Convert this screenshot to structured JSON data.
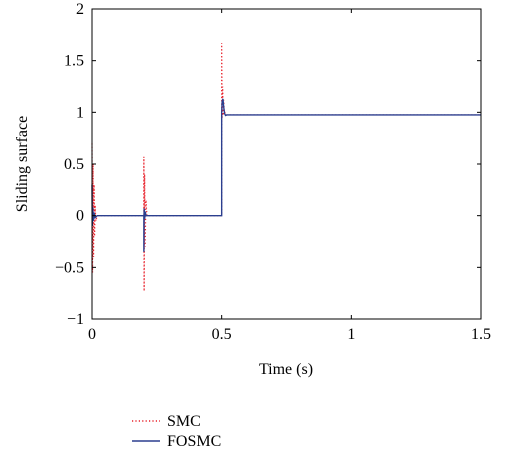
{
  "chart_data": {
    "type": "line",
    "title": "",
    "xlabel": "Time (s)",
    "ylabel": "Sliding surface",
    "xlim": [
      0,
      1.5
    ],
    "ylim": [
      -1,
      2
    ],
    "x_ticks": [
      0,
      0.5,
      1,
      1.5
    ],
    "x_tick_labels": [
      "0",
      "0.5",
      "1",
      "1.5"
    ],
    "y_ticks": [
      -1,
      -0.5,
      0,
      0.5,
      1,
      1.5,
      2
    ],
    "y_tick_labels": [
      "−1",
      "−0.5",
      "0",
      "0.5",
      "1",
      "1.5",
      "2"
    ],
    "grid": false,
    "legend_position": "bottom-left, below axes",
    "series": [
      {
        "name": "SMC",
        "color": "#e8202a",
        "style": "dotted",
        "x": [
          0,
          0.002,
          0.004,
          0.006,
          0.008,
          0.01,
          0.012,
          0.015,
          0.02,
          0.03,
          0.19,
          0.199,
          0.2,
          0.2,
          0.201,
          0.203,
          0.205,
          0.208,
          0.212,
          0.22,
          0.49,
          0.499,
          0.5,
          0.5,
          0.502,
          0.504,
          0.506,
          0.508,
          0.51,
          0.512,
          0.515,
          0.52,
          0.53,
          1.5
        ],
        "y": [
          0.7,
          -0.55,
          0.5,
          -0.4,
          0.3,
          -0.2,
          0.1,
          -0.05,
          0.0,
          0.0,
          0.0,
          0.0,
          0.0,
          0.57,
          -0.73,
          0.4,
          -0.3,
          0.15,
          0.0,
          0.0,
          0.0,
          0.0,
          0.0,
          1.67,
          0.95,
          1.25,
          0.97,
          1.12,
          0.98,
          1.0,
          0.98,
          0.975,
          0.975,
          0.975
        ]
      },
      {
        "name": "FOSMC",
        "color": "#2b3f8f",
        "style": "solid",
        "x": [
          0,
          0.001,
          0.003,
          0.005,
          0.008,
          0.012,
          0.02,
          0.05,
          0.19,
          0.199,
          0.2,
          0.2,
          0.201,
          0.203,
          0.205,
          0.208,
          0.212,
          0.22,
          0.49,
          0.499,
          0.5,
          0.5,
          0.502,
          0.505,
          0.508,
          0.511,
          0.515,
          0.52,
          0.53,
          1.5
        ],
        "y": [
          0.3,
          -0.1,
          0.08,
          -0.05,
          0.03,
          -0.02,
          0.0,
          0.0,
          0.0,
          0.0,
          0.0,
          -0.35,
          0.07,
          -0.03,
          0.04,
          0.0,
          0.0,
          0.0,
          0.0,
          0.0,
          0.0,
          1.0,
          1.11,
          1.13,
          1.05,
          0.99,
          0.97,
          0.975,
          0.975,
          0.975
        ]
      }
    ]
  }
}
